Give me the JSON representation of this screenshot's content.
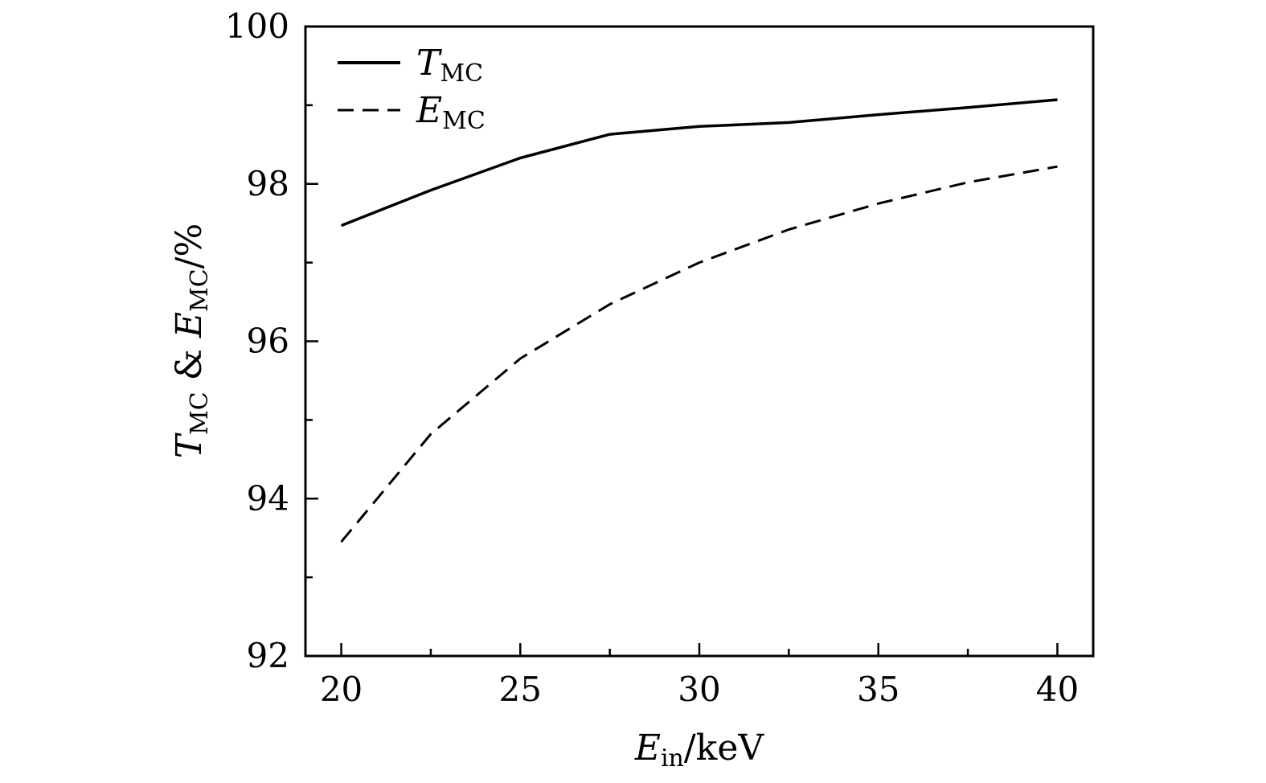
{
  "chart_data": {
    "type": "line",
    "xlabel": {
      "main": "E",
      "sub": "in",
      "rest": "/keV"
    },
    "ylabel": {
      "t_main": "T",
      "t_sub": "MC",
      "mid": " & ",
      "e_main": "E",
      "e_sub": "MC",
      "rest": "/%"
    },
    "xlim": [
      19,
      41
    ],
    "ylim": [
      92,
      100
    ],
    "xticks": [
      20,
      25,
      30,
      35,
      40
    ],
    "xminor_ticks": [
      22.5,
      27.5,
      32.5,
      37.5
    ],
    "yticks": [
      92,
      94,
      96,
      98,
      100
    ],
    "yminor_ticks": [
      93,
      95,
      97,
      99
    ],
    "grid": false,
    "legend_position": "top-left",
    "series": [
      {
        "name_main": "T",
        "name_sub": "MC",
        "style": "solid",
        "color": "#000000",
        "x": [
          20,
          22.5,
          25,
          27.5,
          30,
          32.5,
          35,
          37.5,
          40
        ],
        "y": [
          97.47,
          97.92,
          98.33,
          98.63,
          98.73,
          98.78,
          98.88,
          98.97,
          99.07
        ]
      },
      {
        "name_main": "E",
        "name_sub": "MC",
        "style": "dashed",
        "color": "#000000",
        "x": [
          20,
          22.5,
          25,
          27.5,
          30,
          32.5,
          35,
          37.5,
          40
        ],
        "y": [
          93.45,
          94.82,
          95.78,
          96.47,
          97.0,
          97.42,
          97.75,
          98.02,
          98.22
        ]
      }
    ]
  }
}
